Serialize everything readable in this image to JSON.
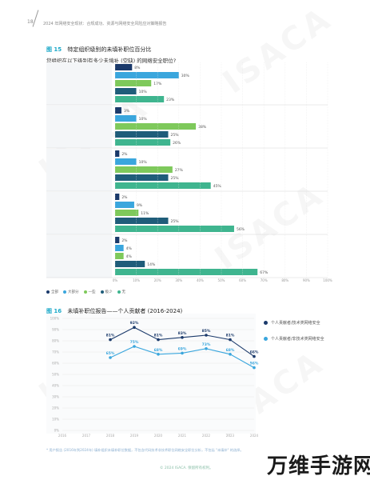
{
  "header": {
    "page_number": "18",
    "running_title": "2024 年网络安全现状：合规成功、资源与网络安全风险应对策略报告"
  },
  "watermark": "ISACA",
  "figure1": {
    "label": "图 15",
    "title": "特定组织级别的未填补职位百分比",
    "question": "您组织在以下级别有多少未填补 (空缺) 的网络安全职位?",
    "legend": [
      {
        "label": "全部",
        "color": "#1b3a6b"
      },
      {
        "label": "大部分",
        "color": "#3aa6dd"
      },
      {
        "label": "一些",
        "color": "#7ec95b"
      },
      {
        "label": "极少",
        "color": "#1f5d7a"
      },
      {
        "label": "无",
        "color": "#3fb58f"
      }
    ],
    "x_ticks": [
      "0%",
      "10%",
      "20%",
      "30%",
      "40%",
      "50%",
      "60%",
      "70%",
      "80%",
      "90%",
      "100%"
    ]
  },
  "chart_data": [
    {
      "type": "bar",
      "orientation": "horizontal",
      "categories": [
        "个人贡献者/技术类网络安全",
        "个人贡献者-非技术类网络安全",
        "网络安全经理",
        "网络安全高级经理/总监",
        "网络安全高管（首席信息安全官等）"
      ],
      "series": [
        {
          "name": "全部",
          "values": [
            8,
            3,
            2,
            2,
            2
          ]
        },
        {
          "name": "大部分",
          "values": [
            30,
            10,
            10,
            9,
            4
          ]
        },
        {
          "name": "一些",
          "values": [
            17,
            38,
            27,
            11,
            4
          ]
        },
        {
          "name": "极少",
          "values": [
            10,
            25,
            25,
            25,
            14
          ]
        },
        {
          "name": "无",
          "values": [
            23,
            26,
            45,
            56,
            67
          ]
        }
      ],
      "xlim": [
        0,
        100
      ],
      "value_labels": [
        [
          "8%",
          "30%",
          "17%",
          "10%",
          "23%"
        ],
        [
          "3%",
          "10%",
          "38%",
          "25%",
          "26%"
        ],
        [
          "2%",
          "10%",
          "27%",
          "25%",
          "45%"
        ],
        [
          "2%",
          "9%",
          "11%",
          "25%",
          "56%"
        ],
        [
          "2%",
          "4%",
          "4%",
          "14%",
          "67%"
        ]
      ]
    },
    {
      "type": "line",
      "title": "未填补职位报告——个人贡献者 (2016-2024)",
      "x": [
        "2016",
        "2017",
        "2018",
        "2019",
        "2020",
        "2021",
        "2022",
        "2023",
        "2024"
      ],
      "series": [
        {
          "name": "个人贡献者/技术类网络安全",
          "values": [
            null,
            null,
            81,
            92,
            81,
            83,
            85,
            81,
            66
          ],
          "labels": [
            "",
            "",
            "81%",
            "92%",
            "81%",
            "83%",
            "85%",
            "81%",
            "66%"
          ]
        },
        {
          "name": "个人贡献者/非技术类网络安全",
          "values": [
            null,
            null,
            65,
            75,
            68,
            69,
            73,
            68,
            56
          ],
          "labels": [
            "",
            "",
            "65%",
            "75%",
            "68%",
            "69%",
            "73%",
            "68%",
            "56%"
          ]
        }
      ],
      "y_ticks": [
        "100%",
        "90%",
        "80%",
        "70%",
        "60%",
        "50%",
        "40%",
        "30%",
        "20%",
        "10%",
        "0%"
      ],
      "ylim": [
        0,
        100
      ],
      "colors": [
        "#1b3a6b",
        "#3aa6dd"
      ]
    }
  ],
  "figure2": {
    "label": "图 16",
    "title": "未填补职位报告——个人贡献者 (2016-2024)"
  },
  "footnote": "* 用户报告 (2016年到2024年) 填补组织未填补职位数据，不包含代码技术非技术职位网络安全职位分析，不包括 \"未填补\" 的选择。",
  "footer": "© 2024 ISACA. 保留所有权利。",
  "brand": "万维手游网"
}
